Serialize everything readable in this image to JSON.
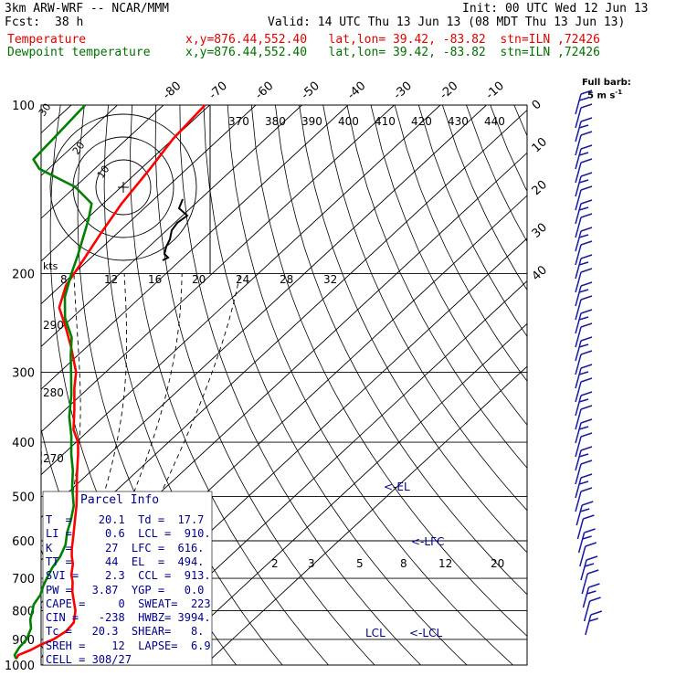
{
  "header": {
    "model": "3km ARW-WRF -- NCAR/MMM",
    "init": "Init: 00 UTC Wed 12 Jun 13",
    "fcst_label": "Fcst:",
    "fcst_value": "38 h",
    "valid": "Valid: 14 UTC Thu 13 Jun 13 (08 MDT Thu 13 Jun 13)",
    "temp_label": "Temperature",
    "temp_info": "x,y=876.44,552.40   lat,lon= 39.42, -83.82  stn=ILN ,72426",
    "dew_label": "Dewpoint temperature",
    "dew_info": "x,y=876.44,552.40   lat,lon= 39.42, -83.82  stn=ILN ,72426",
    "barb_legend_1": "Full barb:",
    "barb_legend_2": "5 m s",
    "barb_legend_sup": "-1"
  },
  "colors": {
    "temperature": "#ff0000",
    "dewpoint": "#008000",
    "grid": "#000000",
    "wind": "#1a1aa0",
    "parcel": "#00008b"
  },
  "chart_data": {
    "type": "line",
    "title": "",
    "xlabel": "",
    "ylabel": "",
    "y_scale": "log-pressure",
    "ylim": [
      1000,
      100
    ],
    "pressure_ticks": [
      100,
      200,
      300,
      400,
      500,
      600,
      700,
      800,
      900,
      1000
    ],
    "temperature_ticks": [
      "-80",
      "-70",
      "-60",
      "-50",
      "-40",
      "-30",
      "-20",
      "-10",
      "0",
      "10",
      "20",
      "30",
      "40"
    ],
    "theta_labels": [
      "370",
      "380",
      "390",
      "400",
      "410",
      "420",
      "430",
      "440"
    ],
    "mixing_ratio_upper": [
      "8",
      "12",
      "16",
      "20",
      "24",
      "28",
      "32"
    ],
    "theta_side_labels": [
      "290",
      "280",
      "270"
    ],
    "mixing_ratio_lower": [
      "2",
      "3",
      "5",
      "8",
      "12",
      "20"
    ],
    "series": [
      {
        "name": "Temperature",
        "points": [
          [
            975,
            17.7
          ],
          [
            960,
            17.3
          ],
          [
            940,
            18.8
          ],
          [
            920,
            19.7
          ],
          [
            900,
            21.2
          ],
          [
            870,
            22.1
          ],
          [
            840,
            21.7
          ],
          [
            800,
            19.3
          ],
          [
            770,
            16.8
          ],
          [
            740,
            14.2
          ],
          [
            710,
            11.9
          ],
          [
            690,
            10.0
          ],
          [
            660,
            7.8
          ],
          [
            640,
            5.8
          ],
          [
            620,
            4.0
          ],
          [
            590,
            1.5
          ],
          [
            560,
            -1.2
          ],
          [
            520,
            -5.0
          ],
          [
            490,
            -8.3
          ],
          [
            460,
            -11.9
          ],
          [
            440,
            -14.3
          ],
          [
            420,
            -16.8
          ],
          [
            400,
            -19.6
          ],
          [
            380,
            -23.5
          ],
          [
            350,
            -28.0
          ],
          [
            320,
            -33.1
          ],
          [
            300,
            -36.4
          ],
          [
            270,
            -43.5
          ],
          [
            250,
            -49.0
          ],
          [
            230,
            -55.2
          ],
          [
            210,
            -58.9
          ],
          [
            190,
            -61.0
          ],
          [
            170,
            -63.5
          ],
          [
            150,
            -66.0
          ],
          [
            130,
            -68.0
          ],
          [
            115,
            -70.0
          ],
          [
            100,
            -71.0
          ]
        ]
      },
      {
        "name": "Dewpoint temperature",
        "points": [
          [
            975,
            17.7
          ],
          [
            960,
            16.5
          ],
          [
            930,
            15.7
          ],
          [
            900,
            15.4
          ],
          [
            860,
            13.8
          ],
          [
            830,
            11.6
          ],
          [
            800,
            10.0
          ],
          [
            780,
            8.8
          ],
          [
            750,
            8.0
          ],
          [
            720,
            6.4
          ],
          [
            700,
            5.5
          ],
          [
            670,
            4.2
          ],
          [
            640,
            3.3
          ],
          [
            610,
            1.7
          ],
          [
            580,
            -0.8
          ],
          [
            550,
            -3.0
          ],
          [
            520,
            -5.6
          ],
          [
            500,
            -8.0
          ],
          [
            480,
            -10.5
          ],
          [
            450,
            -14.0
          ],
          [
            420,
            -18.3
          ],
          [
            390,
            -22.5
          ],
          [
            360,
            -27.5
          ],
          [
            330,
            -32.0
          ],
          [
            300,
            -37.5
          ],
          [
            280,
            -41.5
          ],
          [
            260,
            -45.5
          ],
          [
            240,
            -51.5
          ],
          [
            220,
            -56.5
          ],
          [
            200,
            -60.5
          ],
          [
            185,
            -63.5
          ],
          [
            170,
            -67.0
          ],
          [
            160,
            -69.5
          ],
          [
            150,
            -72.5
          ],
          [
            140,
            -80.0
          ],
          [
            130,
            -92.0
          ],
          [
            125,
            -95.5
          ],
          [
            115,
            -96.0
          ],
          [
            100,
            -97.0
          ]
        ]
      }
    ],
    "levels": {
      "lcl_label": "LCL",
      "lfc_label": "<-LFC",
      "el_label": "<-EL",
      "ccl_label": "<-LCL"
    },
    "hodograph": {
      "unit_label": "kts",
      "ring_labels": [
        "10",
        "20",
        "30"
      ]
    }
  },
  "parcel_info": {
    "title": "Parcel Info",
    "rows": [
      "T  =    20.1  Td =  17.7",
      "LI =     0.6  LCL =  910.",
      "K  =     27  LFC =  616.",
      "TT =     44  EL  =  494.",
      "SVI =    2.3  CCL =  913.",
      "PW =   3.87  YGP =   0.0",
      "CAPE =     0  SWEAT=  223",
      "CIN =   -238  HWBZ= 3994.",
      "Tc =   20.3  SHEAR=   8.",
      "SREH =    12  LAPSE=  6.9",
      "CELL = 308/27"
    ]
  }
}
